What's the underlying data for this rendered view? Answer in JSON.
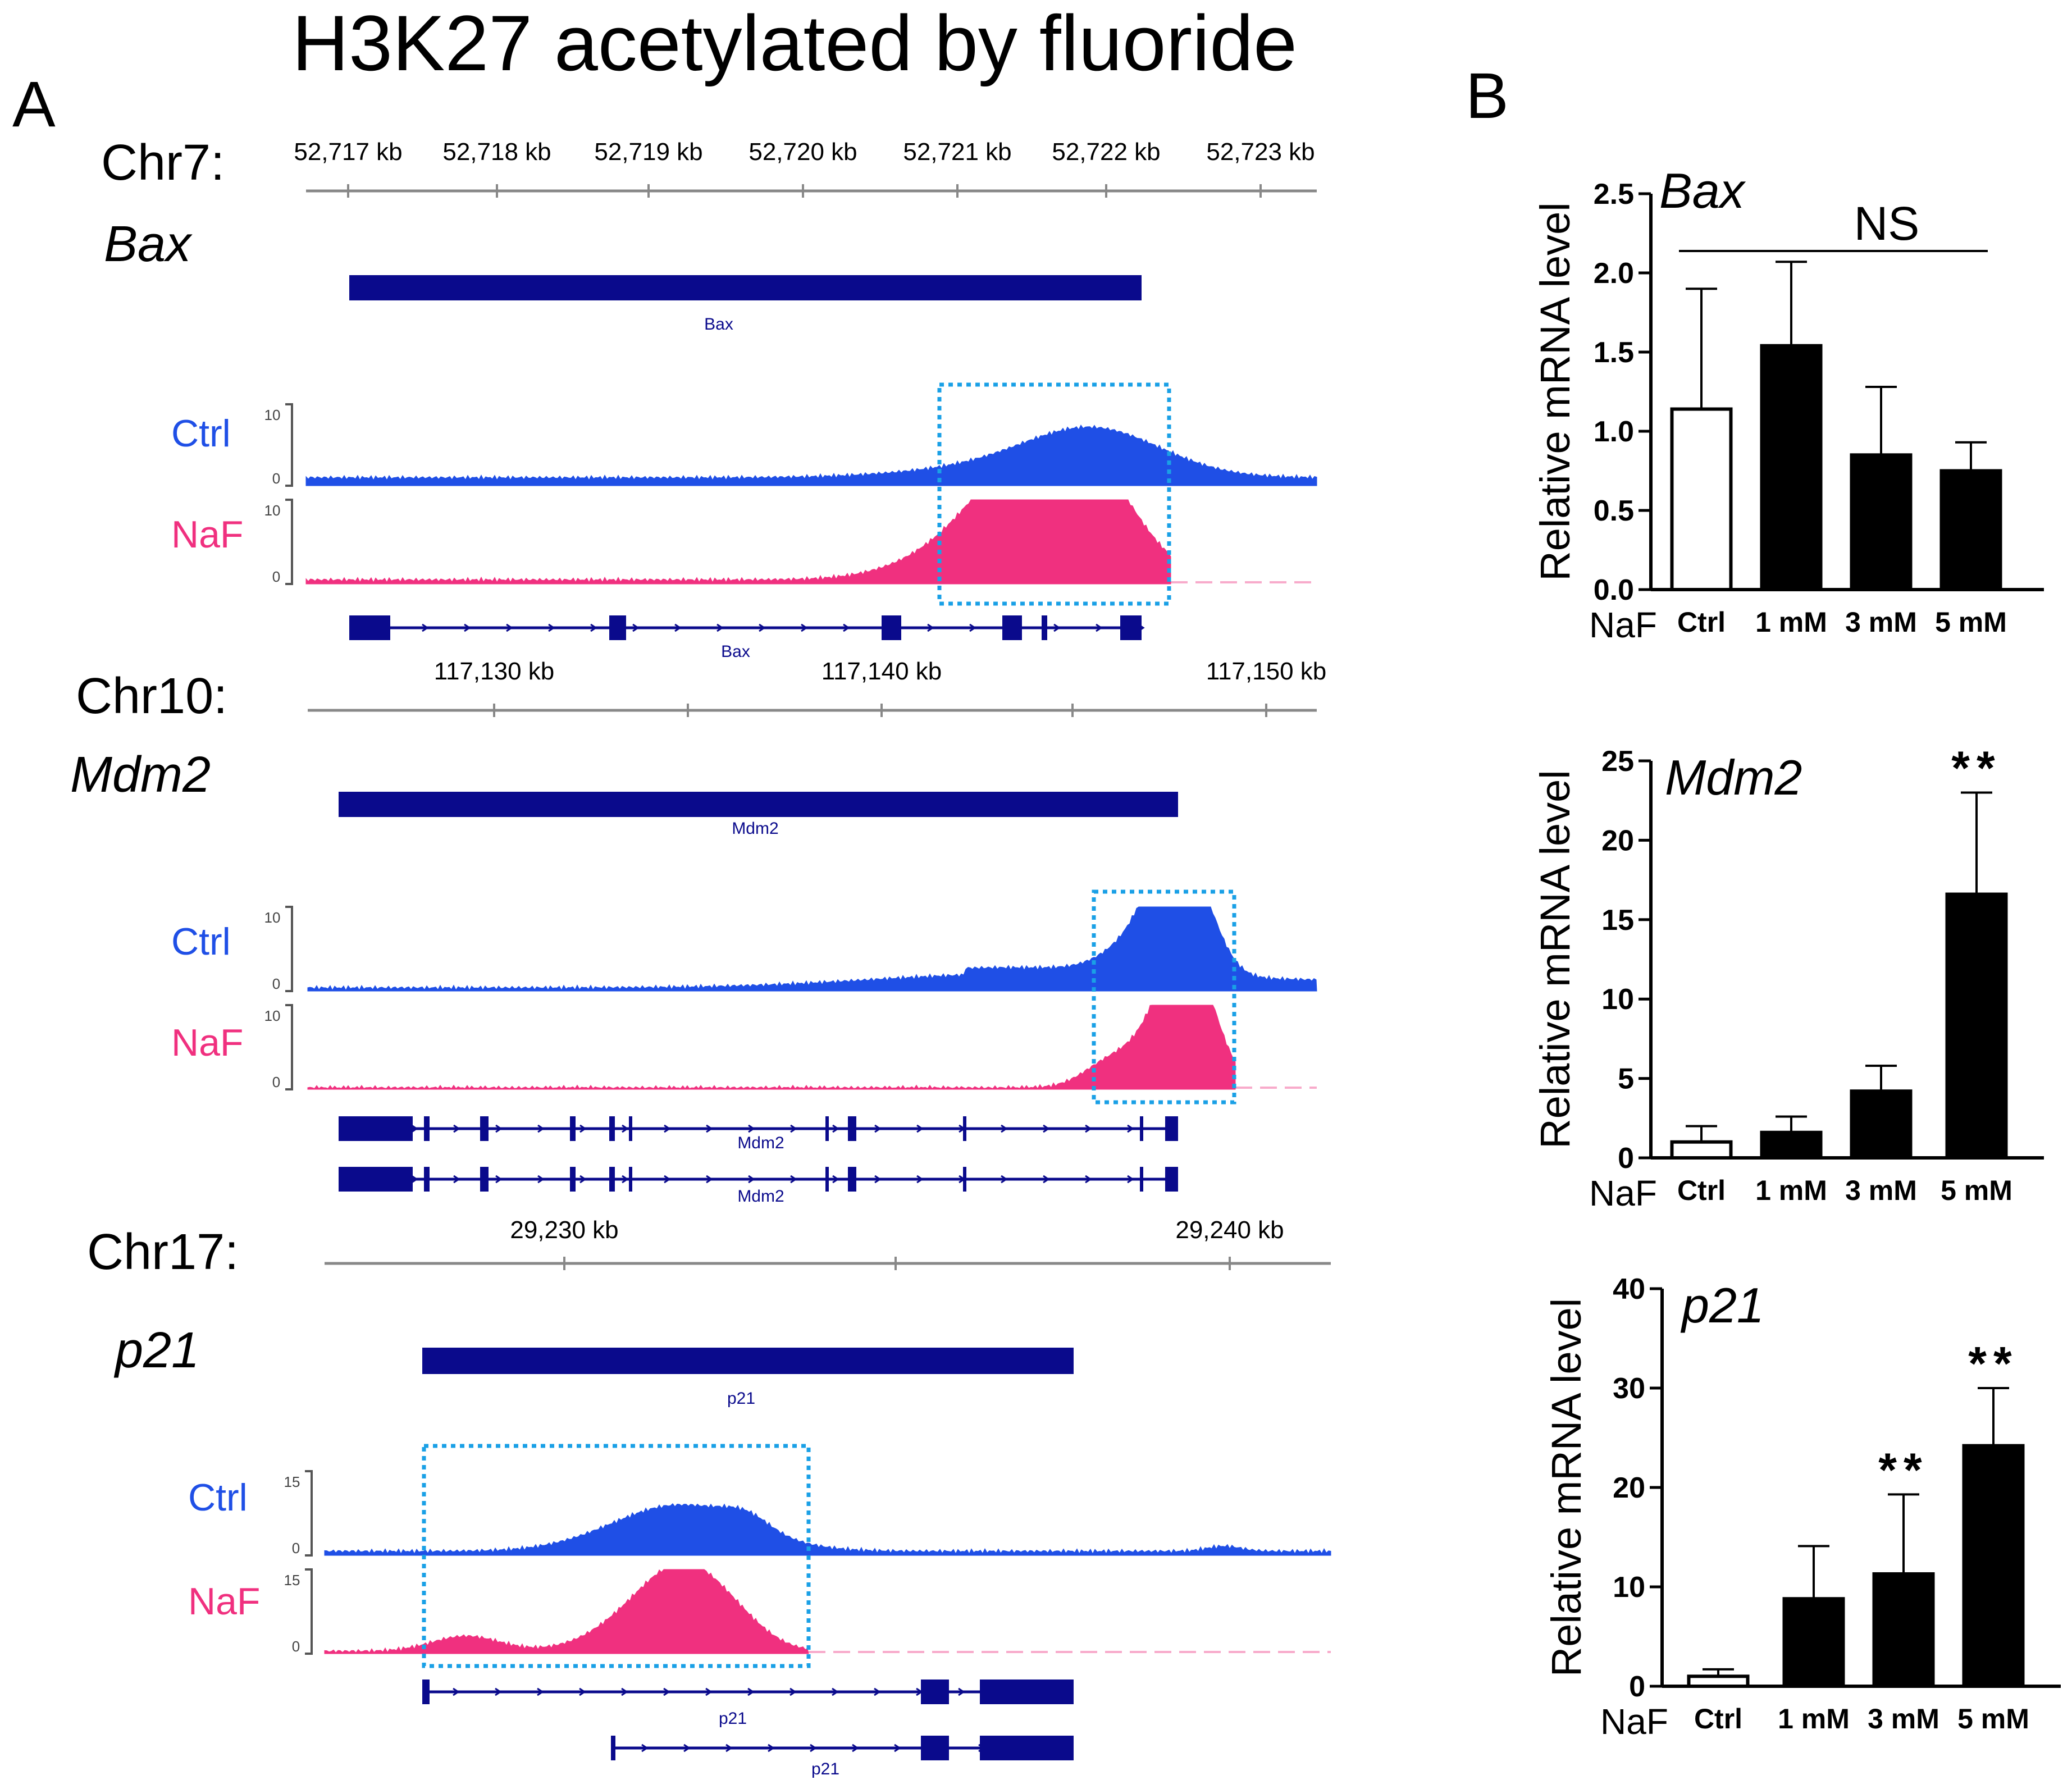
{
  "figure": {
    "title": "H3K27 acetylated by fluoride",
    "panel_a_label": "A",
    "panel_b_label": "B"
  },
  "colors": {
    "ctrl": "#1f4fe6",
    "naf": "#f0307f",
    "gene": "#0a0a8c",
    "box": "#1aa0e6",
    "bar_fill": "#000000"
  },
  "tracks": [
    {
      "chrom": "Chr7:",
      "gene": "Bax",
      "ticks": [
        "52,717 kb",
        "52,718 kb",
        "52,719 kb",
        "52,720 kb",
        "52,721 kb",
        "52,722 kb",
        "52,723 kb"
      ],
      "gene_name": "Bax",
      "transcripts": [
        "Bax"
      ],
      "ctrl_label": "Ctrl",
      "naf_label": "NaF",
      "scale_max": "10",
      "scale_min": "0"
    },
    {
      "chrom": "Chr10:",
      "gene": "Mdm2",
      "ticks": [
        "117,130 kb",
        "117,140 kb",
        "117,150 kb"
      ],
      "gene_name": "Mdm2",
      "transcripts": [
        "Mdm2",
        "Mdm2"
      ],
      "ctrl_label": "Ctrl",
      "naf_label": "NaF",
      "scale_max": "10",
      "scale_min": "0"
    },
    {
      "chrom": "Chr17:",
      "gene": "p21",
      "ticks": [
        "29,230 kb",
        "29,240 kb"
      ],
      "gene_name": "p21",
      "transcripts": [
        "p21",
        "p21"
      ],
      "ctrl_label": "Ctrl",
      "naf_label": "NaF",
      "scale_max": "15",
      "scale_min": "0"
    }
  ],
  "chart_data": [
    {
      "type": "bar",
      "title": "Bax",
      "ylabel": "Relative mRNA level",
      "xprefix": "NaF",
      "categories": [
        "Ctrl",
        "1 mM",
        "3 mM",
        "5 mM"
      ],
      "values": [
        1.14,
        1.54,
        0.85,
        0.75
      ],
      "errors": [
        0.76,
        0.53,
        0.43,
        0.18
      ],
      "bar_fills": [
        "white",
        "black",
        "black",
        "black"
      ],
      "ylim": [
        0,
        2.5
      ],
      "yticks": [
        "0.0",
        "0.5",
        "1.0",
        "1.5",
        "2.0",
        "2.5"
      ],
      "annotations": [
        {
          "text": "NS",
          "type": "bracket",
          "from": 0,
          "to": 3
        }
      ]
    },
    {
      "type": "bar",
      "title": "Mdm2",
      "ylabel": "Relative mRNA level",
      "xprefix": "NaF",
      "categories": [
        "Ctrl",
        "1 mM",
        "3 mM",
        "5 mM"
      ],
      "values": [
        1.0,
        1.6,
        4.2,
        16.6
      ],
      "errors": [
        1.0,
        1.0,
        1.6,
        6.4
      ],
      "bar_fills": [
        "white",
        "black",
        "black",
        "black"
      ],
      "ylim": [
        0,
        25
      ],
      "yticks": [
        "0",
        "5",
        "10",
        "15",
        "20",
        "25"
      ],
      "annotations": [
        {
          "text": "**",
          "type": "star",
          "index": 3
        }
      ]
    },
    {
      "type": "bar",
      "title": "p21",
      "ylabel": "Relative mRNA level",
      "xprefix": "NaF",
      "categories": [
        "Ctrl",
        "1 mM",
        "3 mM",
        "5 mM"
      ],
      "values": [
        1.0,
        8.8,
        11.3,
        24.2
      ],
      "errors": [
        0.7,
        5.3,
        8.0,
        5.8
      ],
      "bar_fills": [
        "white",
        "black",
        "black",
        "black"
      ],
      "ylim": [
        0,
        40
      ],
      "yticks": [
        "0",
        "10",
        "20",
        "30",
        "40"
      ],
      "annotations": [
        {
          "text": "**",
          "type": "star",
          "index": 2
        },
        {
          "text": "**",
          "type": "star",
          "index": 3
        }
      ]
    }
  ]
}
